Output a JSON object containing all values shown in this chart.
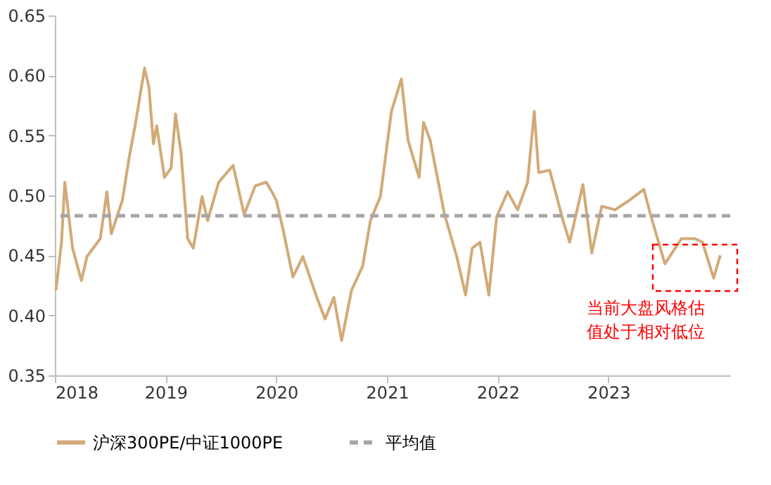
{
  "chart_data": {
    "type": "line",
    "x": [
      2018.01,
      2018.06,
      2018.09,
      2018.13,
      2018.16,
      2018.24,
      2018.29,
      2018.41,
      2018.47,
      2018.51,
      2018.61,
      2018.67,
      2018.73,
      2018.81,
      2018.85,
      2018.89,
      2018.92,
      2018.99,
      2019.05,
      2019.09,
      2019.14,
      2019.2,
      2019.25,
      2019.33,
      2019.38,
      2019.48,
      2019.61,
      2019.71,
      2019.81,
      2019.91,
      2019.96,
      2020.0,
      2020.06,
      2020.15,
      2020.24,
      2020.37,
      2020.44,
      2020.52,
      2020.59,
      2020.68,
      2020.78,
      2020.85,
      2020.94,
      2021.04,
      2021.13,
      2021.19,
      2021.29,
      2021.33,
      2021.39,
      2021.52,
      2021.63,
      2021.71,
      2021.77,
      2021.84,
      2021.92,
      2021.99,
      2022.09,
      2022.18,
      2022.27,
      2022.33,
      2022.37,
      2022.47,
      2022.59,
      2022.65,
      2022.77,
      2022.85,
      2022.94,
      2023.06,
      2023.19,
      2023.32,
      2023.38,
      2023.51,
      2023.66,
      2023.78,
      2023.85,
      2023.95,
      2024.01
    ],
    "series": [
      {
        "name": "沪深300PE/中证1000PE",
        "color": "#d2aa78",
        "values": [
          0.421,
          0.461,
          0.511,
          0.479,
          0.456,
          0.429,
          0.449,
          0.464,
          0.503,
          0.468,
          0.496,
          0.531,
          0.561,
          0.606,
          0.59,
          0.543,
          0.558,
          0.515,
          0.523,
          0.568,
          0.535,
          0.464,
          0.456,
          0.499,
          0.479,
          0.511,
          0.525,
          0.484,
          0.508,
          0.511,
          0.503,
          0.496,
          0.472,
          0.432,
          0.449,
          0.414,
          0.397,
          0.415,
          0.379,
          0.421,
          0.441,
          0.479,
          0.499,
          0.57,
          0.597,
          0.546,
          0.515,
          0.561,
          0.546,
          0.484,
          0.449,
          0.417,
          0.456,
          0.461,
          0.417,
          0.482,
          0.503,
          0.488,
          0.511,
          0.57,
          0.519,
          0.521,
          0.479,
          0.461,
          0.509,
          0.452,
          0.491,
          0.488,
          0.496,
          0.505,
          0.484,
          0.443,
          0.464,
          0.464,
          0.461,
          0.431,
          0.45
        ]
      }
    ],
    "ref_lines": [
      {
        "axis": "y",
        "value": 0.483,
        "label": "平均值",
        "color": "#a6a6a6",
        "line_style": "dashed"
      }
    ],
    "annotations": [
      "当前大盘风格估",
      "值处于相对低位"
    ],
    "xlim": [
      2018,
      2024.1
    ],
    "xticks": [
      2018,
      2019,
      2020,
      2021,
      2022,
      2023
    ],
    "ylim": [
      0.35,
      0.65
    ],
    "yticks": [
      0.35,
      {
        "value": 0.4,
        "label": "0.40"
      },
      0.45,
      {
        "value": 0.5,
        "label": "0.50"
      },
      0.55,
      {
        "value": 0.6,
        "label": "0.60"
      },
      0.65
    ],
    "grid": false,
    "legend": "bottom",
    "line_style": "solid",
    "marker": "none"
  }
}
